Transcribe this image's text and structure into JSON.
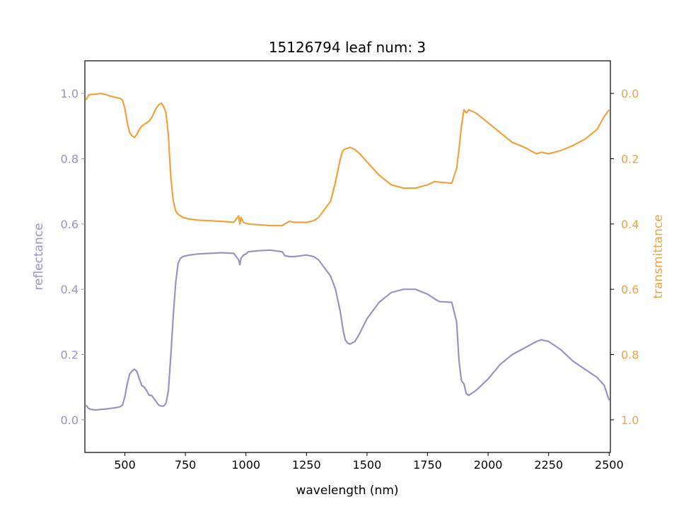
{
  "chart_data": {
    "type": "line",
    "title": "15126794 leaf num: 3",
    "xlabel": "wavelength (nm)",
    "ylabel": "reflectance",
    "y2label": "transmittance",
    "xlim": [
      335,
      2505
    ],
    "ylim": [
      -0.1,
      1.1
    ],
    "y2lim": [
      1.1,
      -0.1
    ],
    "x_ticks": [
      500,
      750,
      1000,
      1250,
      1500,
      1750,
      2000,
      2250,
      2500
    ],
    "y_ticks": [
      0.0,
      0.2,
      0.4,
      0.6,
      0.8,
      1.0
    ],
    "y2_ticks": [
      0.0,
      0.2,
      0.4,
      0.6,
      0.8,
      1.0
    ],
    "grid": false,
    "colors": {
      "reflectance": "#9893c4",
      "transmittance": "#f0a23f"
    },
    "series": [
      {
        "axis": "left",
        "x": [
          340,
          350,
          360,
          380,
          400,
          420,
          440,
          460,
          480,
          490,
          500,
          510,
          520,
          530,
          540,
          550,
          560,
          570,
          580,
          590,
          600,
          610,
          620,
          630,
          640,
          650,
          660,
          670,
          680,
          690,
          700,
          710,
          720,
          730,
          740,
          750,
          760,
          780,
          800,
          850,
          900,
          950,
          970,
          975,
          980,
          990,
          1000,
          1010,
          1050,
          1100,
          1150,
          1160,
          1180,
          1200,
          1250,
          1280,
          1300,
          1320,
          1350,
          1370,
          1390,
          1400,
          1410,
          1420,
          1430,
          1450,
          1470,
          1500,
          1550,
          1600,
          1650,
          1700,
          1750,
          1780,
          1800,
          1850,
          1870,
          1880,
          1890,
          1900,
          1910,
          1920,
          1950,
          2000,
          2050,
          2100,
          2150,
          2200,
          2220,
          2250,
          2300,
          2350,
          2400,
          2450,
          2480,
          2500
        ],
        "values": [
          0.045,
          0.035,
          0.032,
          0.03,
          0.032,
          0.033,
          0.035,
          0.037,
          0.04,
          0.045,
          0.07,
          0.11,
          0.14,
          0.15,
          0.155,
          0.148,
          0.125,
          0.105,
          0.1,
          0.09,
          0.075,
          0.075,
          0.065,
          0.055,
          0.045,
          0.042,
          0.042,
          0.05,
          0.09,
          0.2,
          0.32,
          0.42,
          0.48,
          0.495,
          0.5,
          0.502,
          0.504,
          0.506,
          0.508,
          0.51,
          0.512,
          0.51,
          0.49,
          0.475,
          0.495,
          0.505,
          0.508,
          0.515,
          0.518,
          0.52,
          0.515,
          0.503,
          0.5,
          0.5,
          0.505,
          0.5,
          0.49,
          0.47,
          0.44,
          0.4,
          0.33,
          0.28,
          0.245,
          0.235,
          0.232,
          0.24,
          0.265,
          0.31,
          0.36,
          0.39,
          0.4,
          0.4,
          0.385,
          0.37,
          0.362,
          0.36,
          0.3,
          0.18,
          0.12,
          0.11,
          0.08,
          0.075,
          0.09,
          0.125,
          0.17,
          0.2,
          0.22,
          0.24,
          0.245,
          0.24,
          0.215,
          0.18,
          0.155,
          0.13,
          0.105,
          0.06
        ]
      },
      {
        "axis": "right",
        "x": [
          340,
          350,
          360,
          380,
          400,
          420,
          440,
          460,
          480,
          490,
          500,
          510,
          520,
          530,
          540,
          550,
          560,
          570,
          580,
          590,
          600,
          610,
          620,
          630,
          640,
          650,
          660,
          670,
          680,
          690,
          700,
          710,
          720,
          730,
          740,
          750,
          760,
          780,
          800,
          850,
          900,
          950,
          970,
          975,
          980,
          990,
          1000,
          1010,
          1050,
          1100,
          1150,
          1160,
          1180,
          1200,
          1250,
          1280,
          1300,
          1320,
          1350,
          1370,
          1390,
          1400,
          1410,
          1420,
          1430,
          1450,
          1470,
          1500,
          1550,
          1600,
          1650,
          1700,
          1750,
          1780,
          1800,
          1850,
          1870,
          1880,
          1890,
          1900,
          1910,
          1920,
          1950,
          2000,
          2050,
          2100,
          2150,
          2200,
          2220,
          2250,
          2300,
          2350,
          2400,
          2450,
          2480,
          2500
        ],
        "values": [
          0.02,
          0.005,
          0.003,
          0.002,
          0.0,
          0.003,
          0.008,
          0.012,
          0.015,
          0.02,
          0.045,
          0.09,
          0.12,
          0.13,
          0.135,
          0.125,
          0.11,
          0.1,
          0.095,
          0.09,
          0.085,
          0.075,
          0.06,
          0.045,
          0.035,
          0.03,
          0.04,
          0.06,
          0.13,
          0.26,
          0.33,
          0.36,
          0.37,
          0.375,
          0.38,
          0.382,
          0.384,
          0.386,
          0.388,
          0.39,
          0.392,
          0.395,
          0.375,
          0.4,
          0.38,
          0.395,
          0.398,
          0.4,
          0.402,
          0.405,
          0.405,
          0.4,
          0.392,
          0.395,
          0.395,
          0.39,
          0.38,
          0.36,
          0.33,
          0.27,
          0.2,
          0.175,
          0.17,
          0.168,
          0.165,
          0.172,
          0.185,
          0.21,
          0.25,
          0.28,
          0.29,
          0.29,
          0.28,
          0.27,
          0.272,
          0.275,
          0.23,
          0.17,
          0.1,
          0.05,
          0.06,
          0.05,
          0.06,
          0.09,
          0.12,
          0.15,
          0.165,
          0.185,
          0.18,
          0.185,
          0.175,
          0.16,
          0.14,
          0.11,
          0.07,
          0.05
        ]
      }
    ]
  }
}
